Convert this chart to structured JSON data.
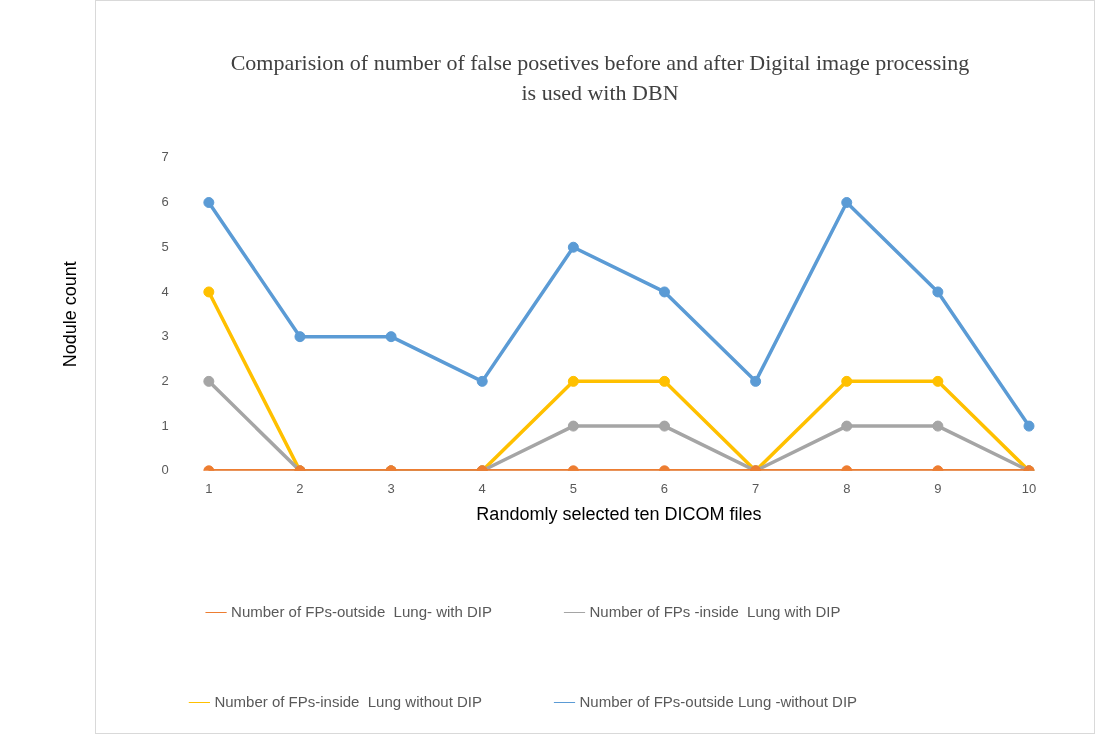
{
  "chart_data": {
    "type": "line",
    "title": "Comparision of number of false posetives before and after Digital image processing is used with DBN",
    "xlabel": "Randomly selected ten DICOM files",
    "ylabel": "Nodule count",
    "categories": [
      "1",
      "2",
      "3",
      "4",
      "5",
      "6",
      "7",
      "8",
      "9",
      "10"
    ],
    "series": [
      {
        "name": "Number of FPs-outside  Lung- with DIP",
        "color": "#ed7d31",
        "values": [
          0,
          0,
          0,
          0,
          0,
          0,
          0,
          0,
          0,
          0
        ]
      },
      {
        "name": "Number of FPs -inside  Lung with DIP",
        "color": "#a5a5a5",
        "values": [
          2,
          0,
          0,
          0,
          1,
          1,
          0,
          1,
          1,
          0
        ]
      },
      {
        "name": "Number of FPs-inside  Lung without DIP",
        "color": "#ffc000",
        "values": [
          4,
          0,
          0,
          0,
          2,
          2,
          0,
          2,
          2,
          0
        ]
      },
      {
        "name": "Number of FPs-outside Lung -without DIP",
        "color": "#5b9bd5",
        "values": [
          6,
          3,
          3,
          2,
          5,
          4,
          2,
          6,
          4,
          1
        ]
      }
    ],
    "ylim": [
      0,
      7
    ],
    "yticks": [
      0,
      1,
      2,
      3,
      4,
      5,
      6,
      7
    ],
    "grid": false,
    "legend": "bottom",
    "marker": "circle",
    "line_style": "solid"
  }
}
